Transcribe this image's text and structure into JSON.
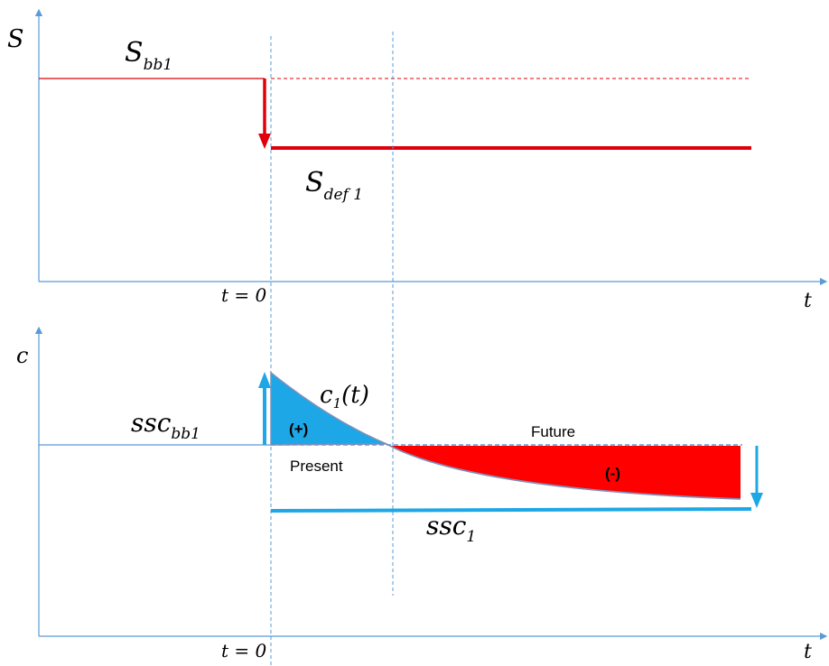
{
  "top_panel": {
    "y_axis_label": "S",
    "x_axis_label": "t",
    "t0_label": "t = 0",
    "pre_level_label": {
      "base": "S",
      "sub": "bb1"
    },
    "post_level_label": {
      "base": "S",
      "sub": "def 1"
    }
  },
  "bottom_panel": {
    "y_axis_label": "c",
    "x_axis_label": "t",
    "t0_label": "t = 0",
    "pre_level_label": {
      "base": "ssc",
      "sub": "bb1"
    },
    "new_level_label": {
      "base": "ssc",
      "sub": "1"
    },
    "curve_label": {
      "base": "c",
      "sub": "1",
      "arg": "(t)"
    },
    "positive_region_label": "(+)",
    "negative_region_label": "(-)",
    "present_label": "Present",
    "future_label": "Future"
  },
  "colors": {
    "axis": "#5b9bd5",
    "s_line": "#e0000b",
    "blue_fill": "#1ea7e6",
    "red_fill": "#ff0000",
    "level_line": "#1ea7e6",
    "dashed_guide": "#5b9bd5",
    "curve_stroke": "#7f8fb8"
  },
  "icons": [
    "up-arrow-icon",
    "down-arrow-icon"
  ]
}
